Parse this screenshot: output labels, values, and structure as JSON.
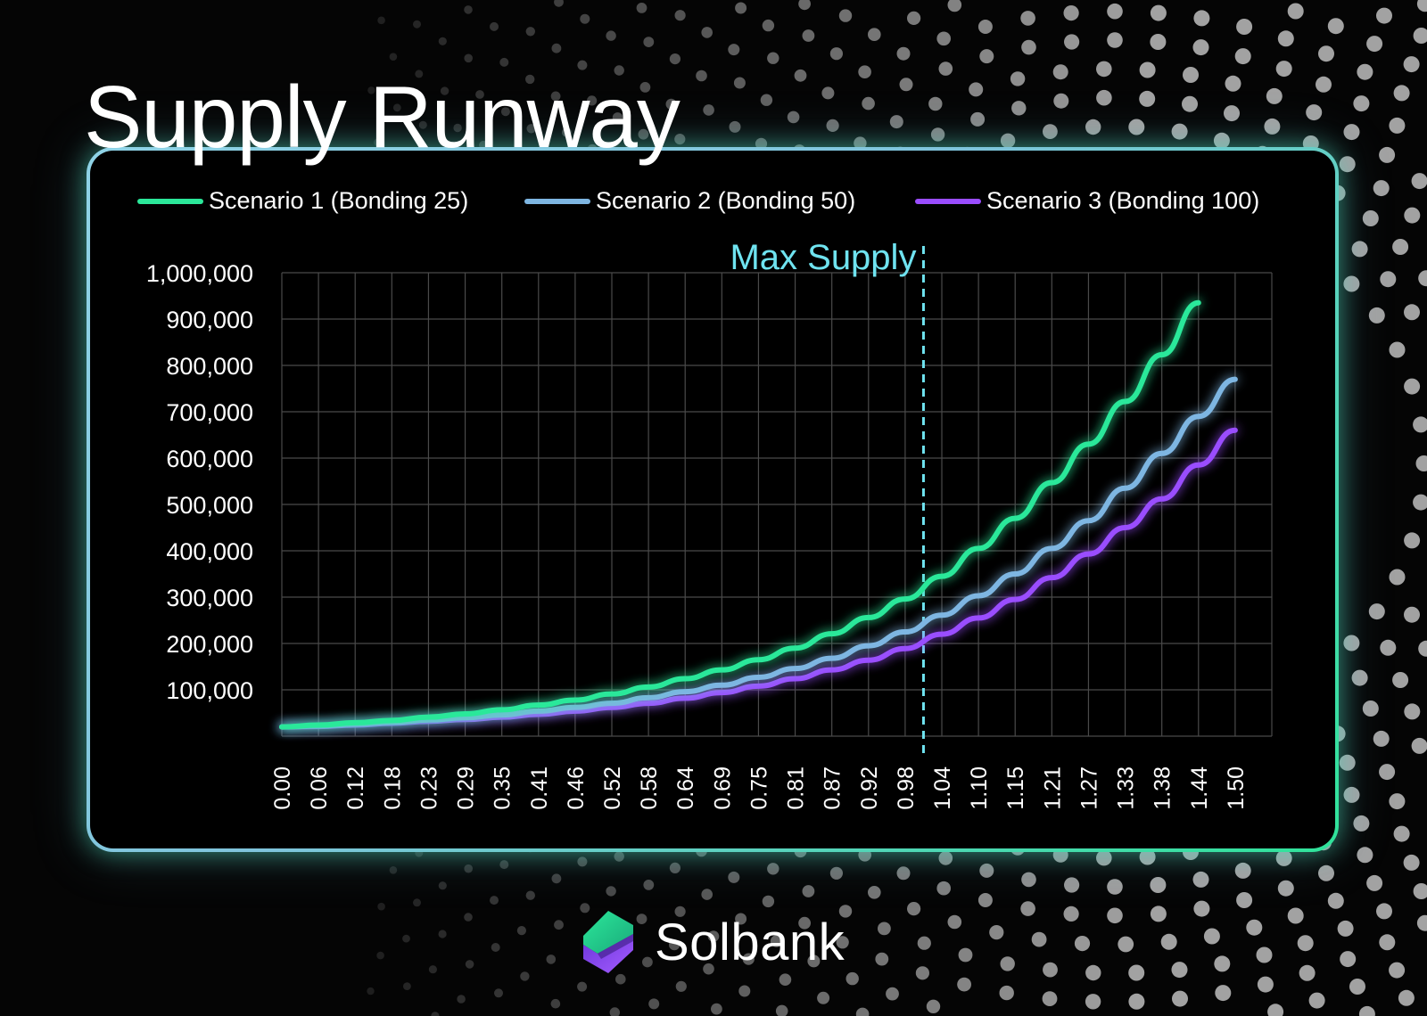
{
  "title": "Supply Runway",
  "brand": {
    "name": "Solbank"
  },
  "colors": {
    "scenario1": "#2be89a",
    "scenario2": "#7eb6e2",
    "scenario3": "#9a4dff",
    "max_supply": "#6fe3f0"
  },
  "chart_data": {
    "type": "line",
    "title": "",
    "xlabel": "",
    "ylabel": "",
    "x": [
      "0.00",
      "0.06",
      "0.12",
      "0.18",
      "0.23",
      "0.29",
      "0.35",
      "0.41",
      "0.46",
      "0.52",
      "0.58",
      "0.64",
      "0.69",
      "0.75",
      "0.81",
      "0.87",
      "0.92",
      "0.98",
      "1.04",
      "1.10",
      "1.15",
      "1.21",
      "1.27",
      "1.33",
      "1.38",
      "1.44",
      "1.50"
    ],
    "ylim": [
      0,
      1000000
    ],
    "y_ticks": [
      "100,000",
      "200,000",
      "300,000",
      "400,000",
      "500,000",
      "600,000",
      "700,000",
      "800,000",
      "900,000",
      "1,000,000"
    ],
    "y_tick_values": [
      100000,
      200000,
      300000,
      400000,
      500000,
      600000,
      700000,
      800000,
      900000,
      1000000
    ],
    "grid": true,
    "legend_position": "top",
    "series": [
      {
        "name": "Scenario 1 (Bonding 25)",
        "values": [
          20000,
          24000,
          29000,
          34000,
          41000,
          48000,
          57000,
          67000,
          78000,
          91000,
          106000,
          124000,
          143000,
          165000,
          190000,
          221000,
          256000,
          296000,
          345000,
          405000,
          470000,
          547000,
          630000,
          722000,
          823000,
          935000,
          null
        ]
      },
      {
        "name": "Scenario 2 (Bonding 50)",
        "values": [
          20000,
          22000,
          26000,
          30000,
          35000,
          40000,
          46000,
          54000,
          62000,
          71000,
          83000,
          96000,
          110000,
          127000,
          146000,
          168000,
          195000,
          225000,
          261000,
          303000,
          350000,
          405000,
          465000,
          535000,
          610000,
          690000,
          770000
        ]
      },
      {
        "name": "Scenario 3 (Bonding 100)",
        "values": [
          20000,
          21000,
          24000,
          28000,
          32000,
          36000,
          41000,
          47000,
          54000,
          62000,
          71000,
          82000,
          94000,
          108000,
          124000,
          143000,
          164000,
          189000,
          220000,
          255000,
          295000,
          342000,
          393000,
          450000,
          512000,
          585000,
          660000
        ]
      }
    ],
    "annotations": [
      {
        "text": "Max Supply",
        "x": 1.01
      }
    ]
  }
}
